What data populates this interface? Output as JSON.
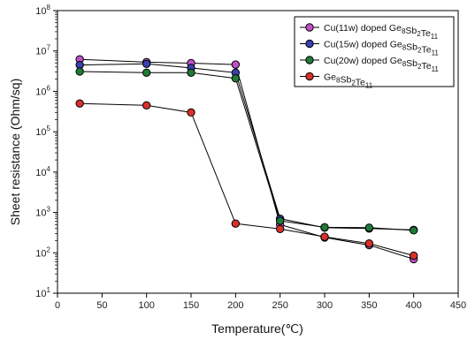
{
  "chart_data": {
    "type": "line",
    "xlabel": "Temperature(℃)",
    "ylabel": "Sheet resistance (Ohm/sq)",
    "y_scale": "log",
    "xlim": [
      0,
      450
    ],
    "ylim_exp": [
      1,
      8
    ],
    "x_ticks": [
      0,
      50,
      100,
      150,
      200,
      250,
      300,
      350,
      400,
      450
    ],
    "y_tick_exps": [
      1,
      2,
      3,
      4,
      5,
      6,
      7,
      8
    ],
    "grid": false,
    "legend_position": "top-right",
    "x": [
      25,
      100,
      150,
      200,
      250,
      300,
      350,
      400
    ],
    "series": [
      {
        "name": "Cu(11w) doped Ge8Sb2Te11",
        "label_parts": [
          [
            "Cu(11w) doped Ge",
            false
          ],
          [
            "8",
            true
          ],
          [
            "Sb",
            false
          ],
          [
            "2",
            true
          ],
          [
            "Te",
            false
          ],
          [
            "11",
            true
          ]
        ],
        "color": "#c050c8",
        "values": [
          6200000,
          5300000,
          5000000,
          4600000,
          500,
          240,
          155,
          70
        ]
      },
      {
        "name": "Cu(15w) doped Ge8Sb2Te11",
        "label_parts": [
          [
            "Cu(15w) doped Ge",
            false
          ],
          [
            "8",
            true
          ],
          [
            "Sb",
            false
          ],
          [
            "2",
            true
          ],
          [
            "Te",
            false
          ],
          [
            "11",
            true
          ]
        ],
        "color": "#3b3fb0",
        "values": [
          4500000,
          4800000,
          3800000,
          2900000,
          700,
          420,
          400,
          370
        ]
      },
      {
        "name": "Cu(20w) doped Ge8Sb2Te11",
        "label_parts": [
          [
            "Cu(20w) doped Ge",
            false
          ],
          [
            "8",
            true
          ],
          [
            "Sb",
            false
          ],
          [
            "2",
            true
          ],
          [
            "Te",
            false
          ],
          [
            "11",
            true
          ]
        ],
        "color": "#1f7a3a",
        "values": [
          3100000,
          2900000,
          2900000,
          2100000,
          620,
          430,
          420,
          360
        ]
      },
      {
        "name": "Ge8Sb2Te11",
        "label_parts": [
          [
            "Ge",
            false
          ],
          [
            "8",
            true
          ],
          [
            "Sb",
            false
          ],
          [
            "2",
            true
          ],
          [
            "Te",
            false
          ],
          [
            "11",
            true
          ]
        ],
        "color": "#d8302a",
        "values": [
          500000,
          450000,
          300000,
          530,
          390,
          250,
          170,
          85
        ]
      }
    ]
  }
}
